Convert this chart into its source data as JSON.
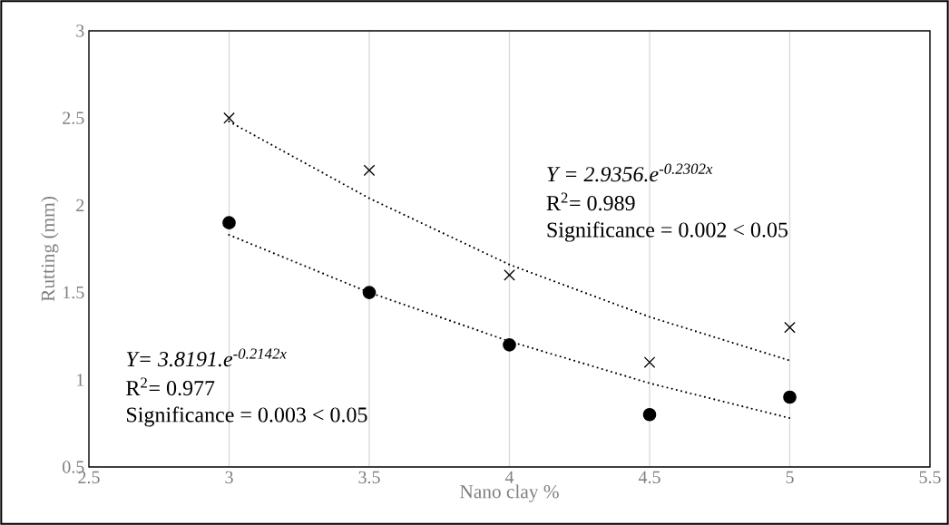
{
  "chart_data": {
    "type": "scatter",
    "xlabel": "Nano clay %",
    "ylabel": "Rutting (mm)",
    "xlim": [
      2.5,
      5.5
    ],
    "xticks": [
      2.5,
      3,
      3.5,
      4,
      4.5,
      5,
      5.5
    ],
    "ylim": [
      0.5,
      3
    ],
    "yticks": [
      0.5,
      1,
      1.5,
      2,
      2.5,
      3
    ],
    "grid": "x",
    "series": [
      {
        "marker": "cross",
        "color": "#000000",
        "x": [
          3,
          3.5,
          4,
          4.5,
          5
        ],
        "values": [
          2.5,
          2.2,
          1.6,
          1.1,
          1.3
        ]
      },
      {
        "marker": "circle",
        "color": "#000000",
        "x": [
          3,
          3.5,
          4,
          4.5,
          5
        ],
        "values": [
          1.9,
          1.5,
          1.2,
          0.8,
          0.9
        ]
      },
      {
        "type": "line",
        "marker": "none",
        "line_style": "dotted",
        "color": "#000000",
        "x": [
          3,
          3.5,
          4,
          4.5,
          5
        ],
        "values": [
          2.48,
          2.04,
          1.66,
          1.36,
          1.11
        ]
      },
      {
        "type": "line",
        "marker": "none",
        "line_style": "dotted",
        "color": "#000000",
        "x": [
          3,
          3.5,
          4,
          4.5,
          5
        ],
        "values": [
          1.83,
          1.5,
          1.22,
          0.98,
          0.78
        ]
      }
    ],
    "annotations": [
      "Y = 2.9356.e$^{-0.2302x}$",
      "R$^{2}$= 0.989",
      "Significance = 0.002 < 0.05",
      "Y= 3.8191.e$^{-0.2142x}$",
      "R$^{2}$= 0.977",
      "Significance = 0.003 < 0.05"
    ]
  }
}
